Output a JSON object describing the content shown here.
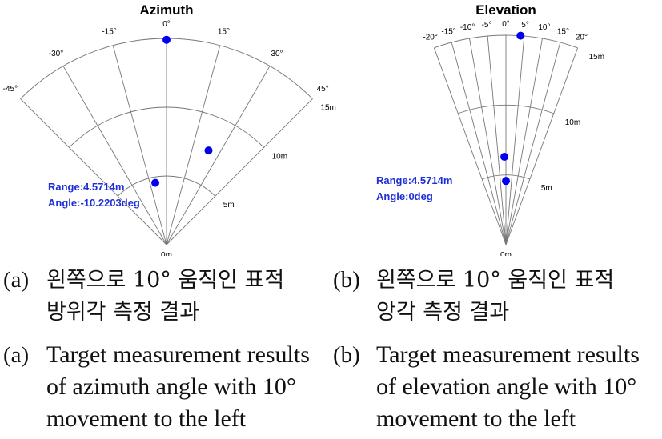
{
  "chart_data": [
    {
      "type": "polar-fan-scatter",
      "title": "Azimuth",
      "angle_ticks_deg": [
        -45,
        -30,
        -15,
        0,
        15,
        30,
        45
      ],
      "angle_tick_labels": [
        "-45°",
        "-30°",
        "-15°",
        "0°",
        "15°",
        "30°",
        "45°"
      ],
      "range_rings_m": [
        5,
        10,
        15
      ],
      "range_labels": [
        "0m",
        "5m",
        "10m",
        "15m"
      ],
      "angle_range_deg": [
        -45,
        45
      ],
      "range_max_m": 15,
      "points": [
        {
          "range_m": 14.9,
          "angle_deg": 0.0
        },
        {
          "range_m": 7.5,
          "angle_deg": 24.0
        },
        {
          "range_m": 4.5714,
          "angle_deg": -10.2203
        }
      ],
      "annotation": {
        "line1": "Range:4.5714m",
        "line2": "Angle:-10.2203deg"
      },
      "point_color": "#0000ee"
    },
    {
      "type": "polar-fan-scatter",
      "title": "Elevation",
      "angle_ticks_deg": [
        -20,
        -15,
        -10,
        -5,
        0,
        5,
        10,
        15,
        20
      ],
      "angle_tick_labels": [
        "-20°",
        "-15°",
        "-10°",
        "-5°",
        "0°",
        "5°",
        "10°",
        "15°",
        "20°"
      ],
      "range_rings_m": [
        5,
        10,
        15
      ],
      "range_labels": [
        "0m",
        "5m",
        "10m",
        "15m"
      ],
      "angle_range_deg": [
        -20,
        20
      ],
      "range_max_m": 15,
      "points": [
        {
          "range_m": 15.0,
          "angle_deg": 4.0
        },
        {
          "range_m": 6.3,
          "angle_deg": -1.0
        },
        {
          "range_m": 4.5714,
          "angle_deg": 0.0
        }
      ],
      "annotation": {
        "line1": "Range:4.5714m",
        "line2": "Angle:0deg"
      },
      "point_color": "#0000ee"
    }
  ],
  "captions": {
    "a_ko_line1": "왼쪽으로 10° 움직인 표적",
    "a_ko_line2": "방위각 측정 결과",
    "b_ko_line1": "왼쪽으로 10° 움직인 표적",
    "b_ko_line2": "앙각 측정 결과",
    "a_en_line1": "Target measurement results",
    "a_en_line2": "of azimuth angle with 10°",
    "a_en_line3": "movement to the left",
    "b_en_line1": "Target measurement results",
    "b_en_line2": "of elevation angle with 10°",
    "b_en_line3": "movement to the left",
    "label_a": "(a)",
    "label_b": "(b)"
  }
}
